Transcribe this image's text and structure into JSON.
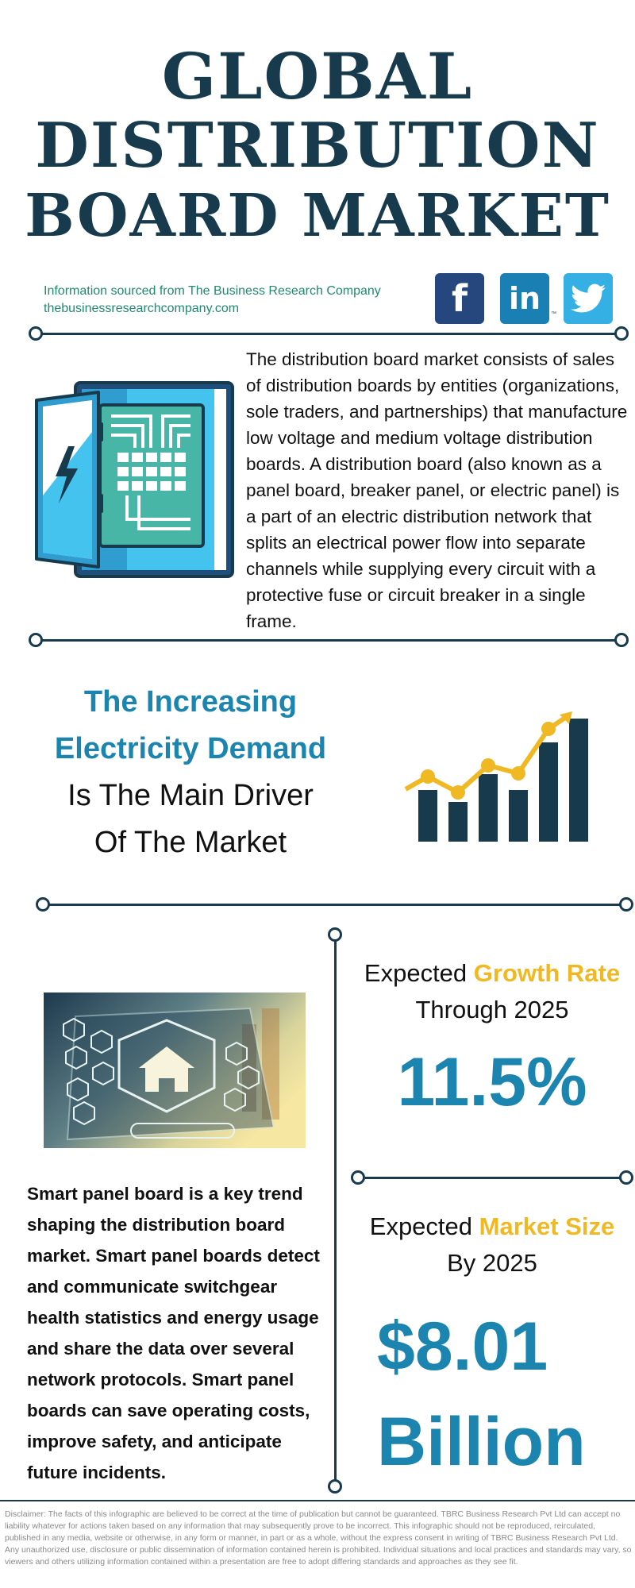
{
  "title": {
    "line1": "GLOBAL",
    "line2": "DISTRIBUTION",
    "line3": "BOARD MARKET"
  },
  "source": {
    "line1": "Information sourced from The Business Research Company",
    "line2": "thebusinessresearchcompany.com"
  },
  "social": {
    "facebook": "f",
    "linkedin": "in",
    "linkedin_tm": "™",
    "icons": [
      "facebook-icon",
      "linkedin-icon",
      "twitter-icon"
    ]
  },
  "description": "The distribution board market consists of sales of distribution boards by entities (organizations, sole traders, and partnerships) that manufacture low voltage and medium voltage distribution boards. A distribution board (also known as a panel board, breaker panel, or electric panel) is a part of an electric distribution network that splits an electrical power flow into separate channels while supplying every circuit with a protective fuse or circuit breaker in a single frame.",
  "driver": {
    "line1": "The Increasing",
    "line2": "Electricity Demand",
    "line3": "Is The Main Driver",
    "line4": "Of The Market"
  },
  "growth": {
    "prefix": "Expected ",
    "highlight": "Growth Rate",
    "line2": "Through 2025",
    "value": "11.5%"
  },
  "market_size": {
    "prefix": "Expected ",
    "highlight": "Market Size",
    "line2": "By 2025",
    "value_line1": "$8.01",
    "value_line2": "Billion"
  },
  "smart_panel_text": "Smart panel board is a key trend shaping the distribution board market. Smart panel boards detect and communicate switchgear health statistics and energy usage and share the data over several network protocols. Smart panel boards can save operating costs, improve safety, and anticipate future incidents.",
  "disclaimer": "Disclaimer: The facts of this infographic are believed to be correct at the time of publication but cannot be guaranteed. TBRC Business Research Pvt Ltd can accept no liability whatever for actions taken based on any information that may subsequently prove to be incorrect. This infographic should not be reproduced, reirculated, published in any media, website or otherwise, in any form or manner, in part or as a whole, without the express consent in writing of TBRC Business Research Pvt Ltd. Any unauthorized use, disclosure or public dissemination of information contained herein is prohibited. Individual situations and local practices and standards may vary, so viewers and others utilizing information contained within a presentation are free to adopt differing standards and approaches as they see fit.",
  "colors": {
    "navy": "#173a4d",
    "blue": "#1b85b0",
    "yellow": "#f0b923",
    "green": "#1f8a6f"
  }
}
